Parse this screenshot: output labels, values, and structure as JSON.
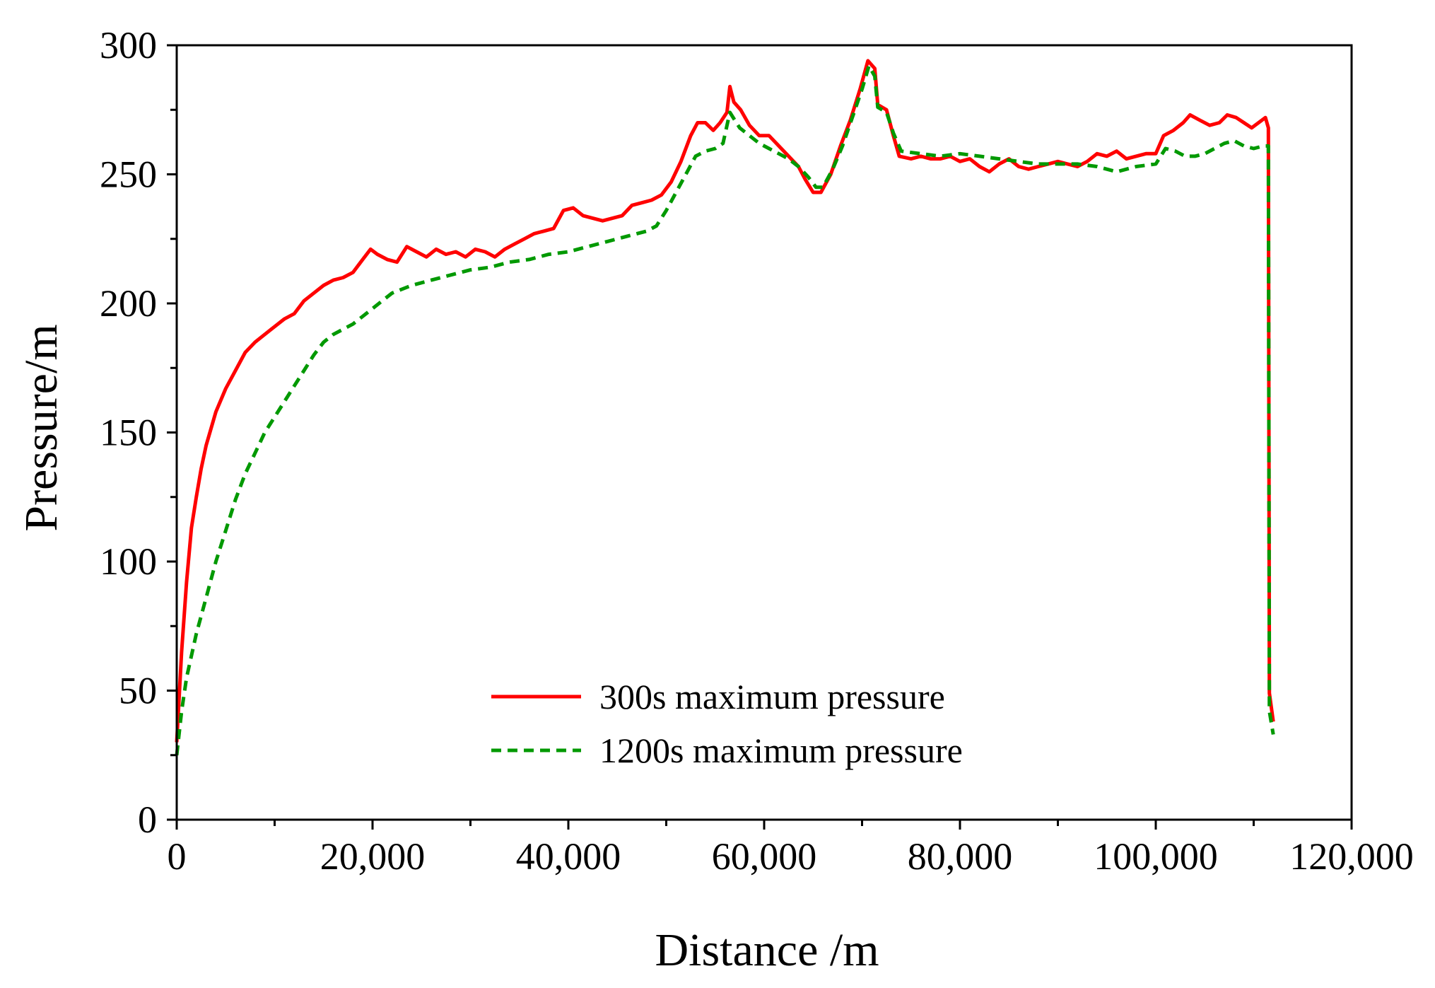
{
  "chart_data": {
    "type": "line",
    "xlabel": "Distance /m",
    "ylabel": "Pressure/m",
    "xlim": [
      0,
      120000
    ],
    "ylim": [
      0,
      300
    ],
    "x_ticks": [
      0,
      20000,
      40000,
      60000,
      80000,
      100000,
      120000
    ],
    "x_tick_labels": [
      "0",
      "20,000",
      "40,000",
      "60,000",
      "80,000",
      "100,000",
      "120,000"
    ],
    "y_ticks": [
      0,
      50,
      100,
      150,
      200,
      250,
      300
    ],
    "y_tick_labels": [
      "0",
      "50",
      "100",
      "150",
      "200",
      "250",
      "300"
    ],
    "grid": false,
    "legend": {
      "position": "bottom-center"
    },
    "series": [
      {
        "name": "300s maximum pressure",
        "color": "#ff0000",
        "dash": "solid",
        "points": [
          [
            0,
            30
          ],
          [
            500,
            65
          ],
          [
            1000,
            92
          ],
          [
            1500,
            113
          ],
          [
            2000,
            125
          ],
          [
            2500,
            136
          ],
          [
            3000,
            145
          ],
          [
            4000,
            158
          ],
          [
            5000,
            167
          ],
          [
            6000,
            174
          ],
          [
            7000,
            181
          ],
          [
            8000,
            185
          ],
          [
            9000,
            188
          ],
          [
            10000,
            191
          ],
          [
            11000,
            194
          ],
          [
            12000,
            196
          ],
          [
            13000,
            201
          ],
          [
            14000,
            204
          ],
          [
            15000,
            207
          ],
          [
            16000,
            209
          ],
          [
            17000,
            210
          ],
          [
            18000,
            212
          ],
          [
            19000,
            217
          ],
          [
            19800,
            221
          ],
          [
            20500,
            219
          ],
          [
            21500,
            217
          ],
          [
            22500,
            216
          ],
          [
            23500,
            222
          ],
          [
            24500,
            220
          ],
          [
            25500,
            218
          ],
          [
            26500,
            221
          ],
          [
            27500,
            219
          ],
          [
            28500,
            220
          ],
          [
            29500,
            218
          ],
          [
            30500,
            221
          ],
          [
            31500,
            220
          ],
          [
            32500,
            218
          ],
          [
            33500,
            221
          ],
          [
            34500,
            223
          ],
          [
            35500,
            225
          ],
          [
            36500,
            227
          ],
          [
            37500,
            228
          ],
          [
            38500,
            229
          ],
          [
            39500,
            236
          ],
          [
            40500,
            237
          ],
          [
            41500,
            234
          ],
          [
            42500,
            233
          ],
          [
            43500,
            232
          ],
          [
            44500,
            233
          ],
          [
            45500,
            234
          ],
          [
            46500,
            238
          ],
          [
            47500,
            239
          ],
          [
            48500,
            240
          ],
          [
            49500,
            242
          ],
          [
            50500,
            247
          ],
          [
            51500,
            255
          ],
          [
            52500,
            265
          ],
          [
            53200,
            270
          ],
          [
            54000,
            270
          ],
          [
            54800,
            267
          ],
          [
            55500,
            270
          ],
          [
            56200,
            274
          ],
          [
            56500,
            284
          ],
          [
            56900,
            278
          ],
          [
            57600,
            275
          ],
          [
            58500,
            269
          ],
          [
            59500,
            265
          ],
          [
            60500,
            265
          ],
          [
            61500,
            261
          ],
          [
            62500,
            257
          ],
          [
            63500,
            253
          ],
          [
            64200,
            248
          ],
          [
            65000,
            243
          ],
          [
            65800,
            243
          ],
          [
            66800,
            250
          ],
          [
            67800,
            261
          ],
          [
            68800,
            271
          ],
          [
            69800,
            283
          ],
          [
            70600,
            294
          ],
          [
            71300,
            291
          ],
          [
            71600,
            277
          ],
          [
            72500,
            275
          ],
          [
            73200,
            265
          ],
          [
            73800,
            257
          ],
          [
            75000,
            256
          ],
          [
            76000,
            257
          ],
          [
            77000,
            256
          ],
          [
            78000,
            256
          ],
          [
            79000,
            257
          ],
          [
            80000,
            255
          ],
          [
            81000,
            256
          ],
          [
            82000,
            253
          ],
          [
            83000,
            251
          ],
          [
            84000,
            254
          ],
          [
            85000,
            256
          ],
          [
            86000,
            253
          ],
          [
            87000,
            252
          ],
          [
            88000,
            253
          ],
          [
            89000,
            254
          ],
          [
            90000,
            255
          ],
          [
            91000,
            254
          ],
          [
            92000,
            253
          ],
          [
            93000,
            255
          ],
          [
            94000,
            258
          ],
          [
            95000,
            257
          ],
          [
            96000,
            259
          ],
          [
            97000,
            256
          ],
          [
            98000,
            257
          ],
          [
            99000,
            258
          ],
          [
            100000,
            258
          ],
          [
            100800,
            265
          ],
          [
            101800,
            267
          ],
          [
            102800,
            270
          ],
          [
            103500,
            273
          ],
          [
            104500,
            271
          ],
          [
            105500,
            269
          ],
          [
            106500,
            270
          ],
          [
            107300,
            273
          ],
          [
            108200,
            272
          ],
          [
            109000,
            270
          ],
          [
            109800,
            268
          ],
          [
            110500,
            270
          ],
          [
            111200,
            272
          ],
          [
            111500,
            268
          ],
          [
            111600,
            49
          ],
          [
            112000,
            38
          ]
        ]
      },
      {
        "name": "1200s maximum pressure",
        "color": "#009900",
        "dash": "dashed",
        "points": [
          [
            0,
            25
          ],
          [
            500,
            42
          ],
          [
            1000,
            55
          ],
          [
            2000,
            72
          ],
          [
            3000,
            86
          ],
          [
            4000,
            100
          ],
          [
            5000,
            112
          ],
          [
            6000,
            124
          ],
          [
            7000,
            134
          ],
          [
            8000,
            142
          ],
          [
            9000,
            150
          ],
          [
            10000,
            156
          ],
          [
            11000,
            162
          ],
          [
            12000,
            168
          ],
          [
            13000,
            174
          ],
          [
            14000,
            180
          ],
          [
            15000,
            185
          ],
          [
            16000,
            188
          ],
          [
            17000,
            190
          ],
          [
            18000,
            192
          ],
          [
            19000,
            195
          ],
          [
            20000,
            198
          ],
          [
            21000,
            201
          ],
          [
            22000,
            204
          ],
          [
            24000,
            207
          ],
          [
            26000,
            209
          ],
          [
            28000,
            211
          ],
          [
            30000,
            213
          ],
          [
            32000,
            214
          ],
          [
            34000,
            216
          ],
          [
            36000,
            217
          ],
          [
            38000,
            219
          ],
          [
            40000,
            220
          ],
          [
            42000,
            222
          ],
          [
            44000,
            224
          ],
          [
            46000,
            226
          ],
          [
            48000,
            228
          ],
          [
            49000,
            230
          ],
          [
            50000,
            236
          ],
          [
            51000,
            243
          ],
          [
            52000,
            250
          ],
          [
            53000,
            257
          ],
          [
            54000,
            259
          ],
          [
            55000,
            260
          ],
          [
            55800,
            262
          ],
          [
            56500,
            274
          ],
          [
            57500,
            268
          ],
          [
            58500,
            265
          ],
          [
            59500,
            262
          ],
          [
            60500,
            260
          ],
          [
            61500,
            258
          ],
          [
            62500,
            256
          ],
          [
            63500,
            253
          ],
          [
            64500,
            249
          ],
          [
            65300,
            245
          ],
          [
            66000,
            245
          ],
          [
            67000,
            252
          ],
          [
            68000,
            261
          ],
          [
            69000,
            272
          ],
          [
            70000,
            283
          ],
          [
            70700,
            292
          ],
          [
            71300,
            288
          ],
          [
            71600,
            276
          ],
          [
            72500,
            274
          ],
          [
            73200,
            266
          ],
          [
            74000,
            259
          ],
          [
            76000,
            258
          ],
          [
            78000,
            257
          ],
          [
            80000,
            258
          ],
          [
            82000,
            257
          ],
          [
            84000,
            256
          ],
          [
            86000,
            255
          ],
          [
            88000,
            254
          ],
          [
            90000,
            254
          ],
          [
            92000,
            254
          ],
          [
            94000,
            253
          ],
          [
            96000,
            251
          ],
          [
            98000,
            253
          ],
          [
            100000,
            254
          ],
          [
            101000,
            260
          ],
          [
            102000,
            259
          ],
          [
            103000,
            257
          ],
          [
            104000,
            257
          ],
          [
            105000,
            258
          ],
          [
            106000,
            260
          ],
          [
            107000,
            262
          ],
          [
            108000,
            263
          ],
          [
            109000,
            261
          ],
          [
            110000,
            260
          ],
          [
            111000,
            261
          ],
          [
            111500,
            261
          ],
          [
            111600,
            42
          ],
          [
            112000,
            33
          ]
        ]
      }
    ]
  }
}
